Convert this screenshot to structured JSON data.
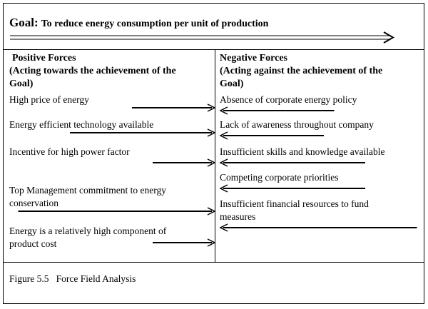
{
  "goal": {
    "label": "Goal:",
    "text": "To reduce energy consumption per unit of production"
  },
  "positive": {
    "heading_line1": "Positive Forces",
    "heading_line2": "(Acting towards the achievement of the",
    "heading_line3": "Goal)",
    "forces": [
      {
        "lines": [
          "High price of energy"
        ],
        "strength": 0.4
      },
      {
        "lines": [
          "Energy efficient technology available"
        ],
        "strength": 0.7
      },
      {
        "lines": [
          "Incentive for high power factor"
        ],
        "strength": 0.3
      },
      {
        "lines": [
          "Top Management commitment to energy",
          "conservation"
        ],
        "strength": 0.95
      },
      {
        "lines": [
          "Energy is a relatively high component of",
          "product cost"
        ],
        "strength": 0.3
      }
    ]
  },
  "negative": {
    "heading_line1": "Negative Forces",
    "heading_line2": "(Acting against the achievement of the",
    "heading_line3": "Goal)",
    "forces": [
      {
        "lines": [
          "Absence of corporate energy policy"
        ],
        "strength": 0.55
      },
      {
        "lines": [
          "Lack of awareness throughout company"
        ],
        "strength": 0.5
      },
      {
        "lines": [
          "Insufficient skills and knowledge available"
        ],
        "strength": 0.7
      },
      {
        "lines": [
          "Competing corporate priorities"
        ],
        "strength": 0.7
      },
      {
        "lines": [
          "Insufficient financial resources to fund",
          "measures"
        ],
        "strength": 0.95
      }
    ]
  },
  "caption": "Figure 5.5   Force Field Analysis"
}
